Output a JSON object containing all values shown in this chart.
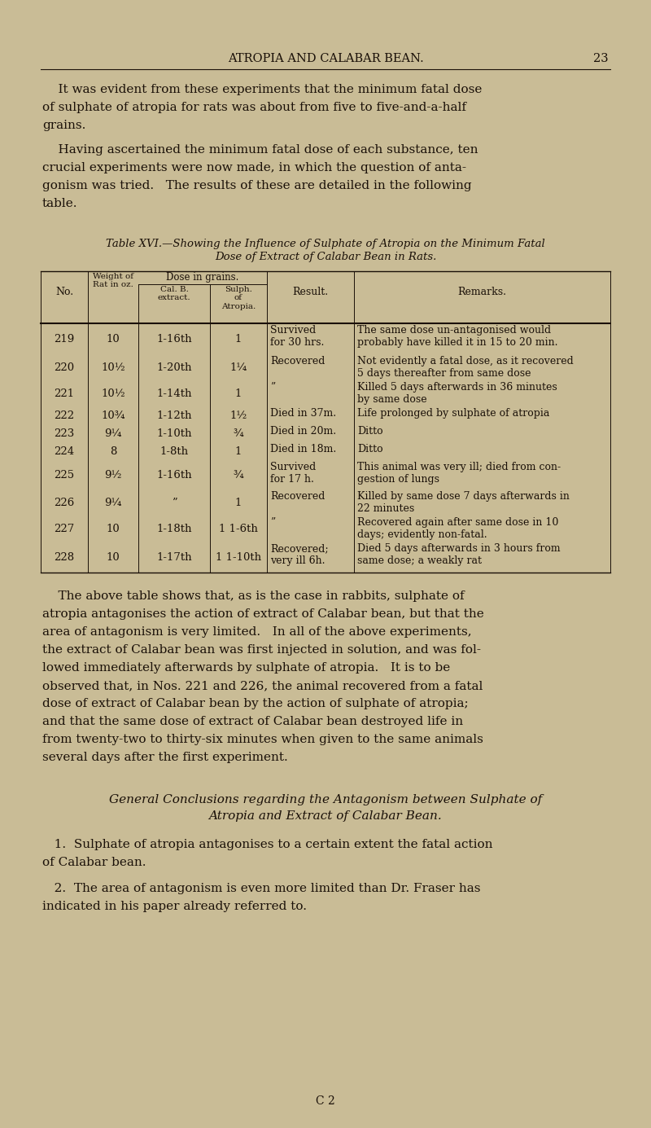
{
  "bg_color": "#c9bc96",
  "text_color": "#1a1008",
  "header_title": "ATROPIA AND CALABAR BEAN.",
  "header_page": "23",
  "para1_lines": [
    "    It was evident from these experiments that the minimum fatal dose",
    "of sulphate of atropia for rats was about from five to five-and-a-half",
    "grains."
  ],
  "para2_lines": [
    "    Having ascertained the minimum fatal dose of each substance, ten",
    "crucial experiments were now made, in which the question of anta-",
    "gonism was tried.   The results of these are detailed in the following",
    "table."
  ],
  "table_title_line1": "Table XVI.—Showing the Influence of Sulphate of Atropia on the Minimum Fatal",
  "table_title_line2": "Dose of Extract of Calabar Bean in Rats.",
  "table_rows": [
    [
      "219",
      "10",
      "1-16th",
      "1",
      "Survived\nfor 30 hrs.",
      "The same dose un-antagonised would\nprobably have killed it in 15 to 20 min."
    ],
    [
      "220",
      "10½",
      "1-20th",
      "1¼",
      "Recovered",
      "Not evidently a fatal dose, as it recovered\n5 days thereafter from same dose"
    ],
    [
      "221",
      "10½",
      "1-14th",
      "1",
      "”",
      "Killed 5 days afterwards in 36 minutes\nby same dose"
    ],
    [
      "222",
      "10¾",
      "1-12th",
      "1½",
      "Died in 37m.",
      "Life prolonged by sulphate of atropia"
    ],
    [
      "223",
      "9¼",
      "1-10th",
      "¾",
      "Died in 20m.",
      "Ditto"
    ],
    [
      "224",
      "8",
      "1-8th",
      "1",
      "Died in 18m.",
      "Ditto"
    ],
    [
      "225",
      "9½",
      "1-16th",
      "¾",
      "Survived\nfor 17 h.",
      "This animal was very ill; died from con-\ngestion of lungs"
    ],
    [
      "226",
      "9¼",
      "”",
      "1",
      "Recovered",
      "Killed by same dose 7 days afterwards in\n22 minutes"
    ],
    [
      "227",
      "10",
      "1-18th",
      "1 1-6th",
      "”",
      "Recovered again after same dose in 10\ndays; evidently non-fatal."
    ],
    [
      "228",
      "10",
      "1-17th",
      "1 1-10th",
      "Recovered;\nvery ill 6h.",
      "Died 5 days afterwards in 3 hours from\nsame dose; a weakly rat"
    ]
  ],
  "para3_lines": [
    "    The above table shows that, as is the case in rabbits, sulphate of",
    "atropia antagonises the action of extract of Calabar bean, but that the",
    "area of antagonism is very limited.   In all of the above experiments,",
    "the extract of Calabar bean was first injected in solution, and was fol-",
    "lowed immediately afterwards by sulphate of atropia.   It is to be",
    "observed that, in Nos. 221 and 226, the animal recovered from a fatal",
    "dose of extract of Calabar bean by the action of sulphate of atropia;",
    "and that the same dose of extract of Calabar bean destroyed life in",
    "from twenty-two to thirty-six minutes when given to the same animals",
    "several days after the first experiment."
  ],
  "section_title_line1": "General Conclusions regarding the Antagonism between Sulphate of",
  "section_title_line2": "Atropia and Extract of Calabar Bean.",
  "conc1_lines": [
    "   1.  Sulphate of atropia antagonises to a certain extent the fatal action",
    "of Calabar bean."
  ],
  "conc2_lines": [
    "   2.  The area of antagonism is even more limited than Dr. Fraser has",
    "indicated in his paper already referred to."
  ],
  "footer": "C 2"
}
